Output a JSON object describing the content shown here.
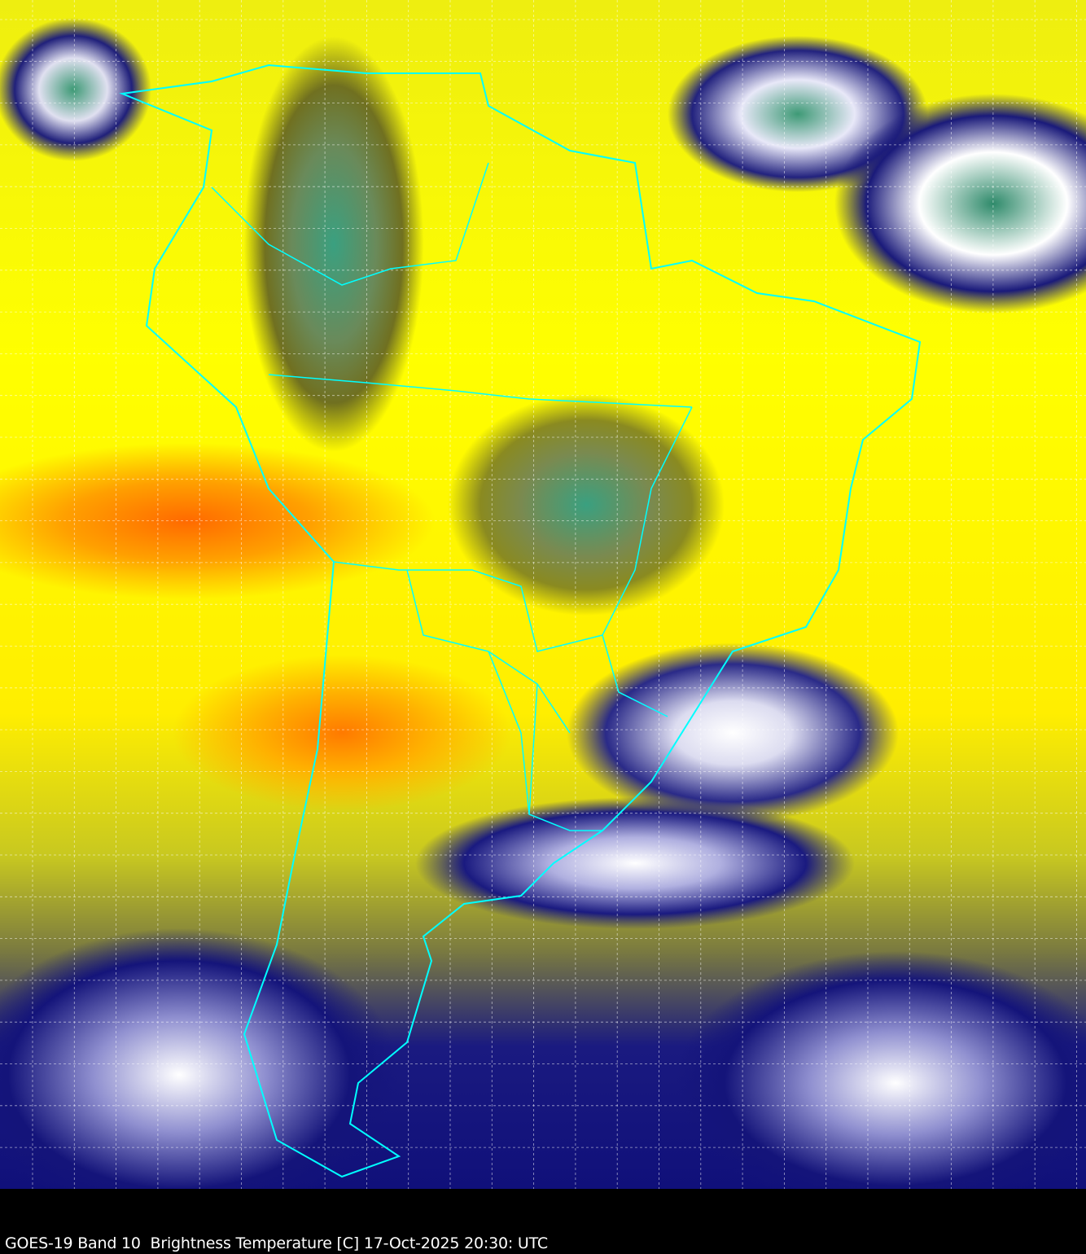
{
  "caption": "GOES-19 Band 10  Brightness Temperature [C] 17-Oct-2025 20:30: UTC",
  "colors": {
    "border_lines": "#00ffff",
    "grid_lines": "#ffffff",
    "warm": "#ff6a00",
    "mid": "#ffff00",
    "cold_cloud": "#14147a",
    "coldest": "#2e8a6a"
  },
  "map": {
    "region": "South America",
    "grid": true
  }
}
